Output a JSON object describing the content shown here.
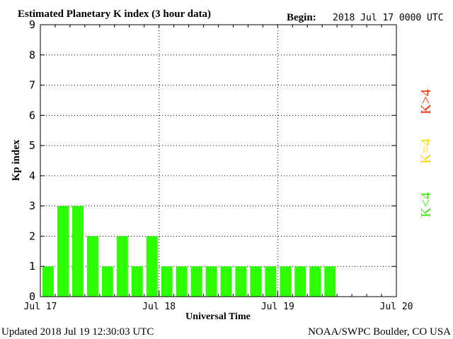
{
  "chart_data": {
    "type": "bar",
    "title": "Estimated Planetary K index (3 hour data)",
    "begin_label": "Begin:",
    "begin_value": "2018 Jul 17 0000 UTC",
    "xlabel": "Universal Time",
    "ylabel": "Kp index",
    "ylim": [
      0,
      9
    ],
    "xlim_days": [
      0,
      3
    ],
    "y_ticks": [
      "0",
      "1",
      "2",
      "3",
      "4",
      "5",
      "6",
      "7",
      "8",
      "9"
    ],
    "x_tick_labels": [
      "Jul 17",
      "Jul 18",
      "Jul 19",
      "Jul 20"
    ],
    "interval_hours": 3,
    "values": [
      1,
      3,
      3,
      2,
      1,
      2,
      1,
      2,
      1,
      1,
      1,
      1,
      1,
      1,
      1,
      1,
      1,
      1,
      1,
      1
    ],
    "grid": "dotted, major days and integer Kp",
    "legend": [
      {
        "text": "K>4",
        "color": "#ff2a00"
      },
      {
        "text": "K=4",
        "color": "#ffd800"
      },
      {
        "text": "K<4",
        "color": "#33ee00"
      }
    ],
    "bar_color": "#2bff00"
  },
  "footer": {
    "updated": "Updated 2018 Jul 19 12:30:03 UTC",
    "source": "NOAA/SWPC Boulder, CO USA"
  }
}
